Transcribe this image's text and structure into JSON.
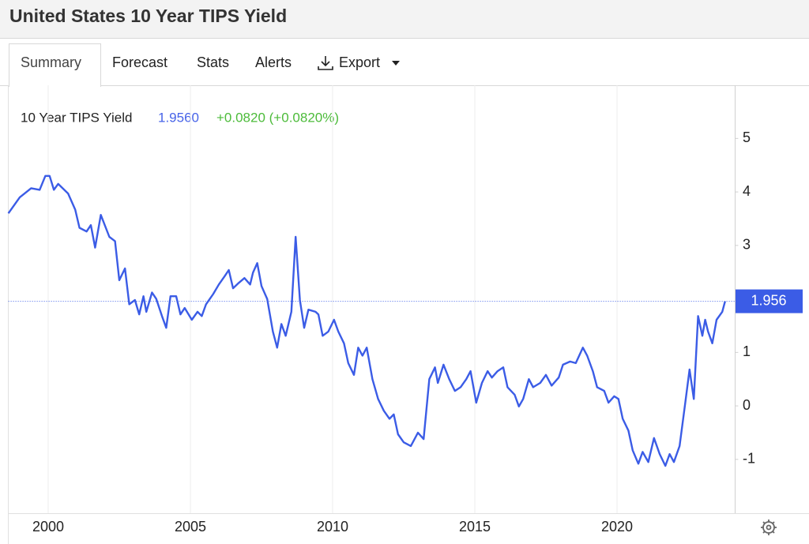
{
  "page": {
    "title": "United States 10 Year TIPS Yield",
    "tabs": [
      "Summary",
      "Forecast",
      "Stats",
      "Alerts",
      "Export"
    ],
    "active_tab": 0
  },
  "chart_data": {
    "type": "line",
    "current": "1.9560",
    "change": "+0.0820 (+0.0820%)",
    "x": [
      1998.6,
      1999.0,
      1999.4,
      1999.7,
      1999.9,
      2000.05,
      2000.2,
      2000.35,
      2000.7,
      2000.95,
      2001.1,
      2001.35,
      2001.5,
      2001.65,
      2001.85,
      2002.15,
      2002.35,
      2002.5,
      2002.7,
      2002.85,
      2003.05,
      2003.2,
      2003.35,
      2003.45,
      2003.65,
      2003.8,
      2004.0,
      2004.15,
      2004.3,
      2004.5,
      2004.65,
      2004.8,
      2005.05,
      2005.25,
      2005.4,
      2005.55,
      2005.8,
      2006.0,
      2006.2,
      2006.35,
      2006.5,
      2006.7,
      2006.9,
      2007.1,
      2007.2,
      2007.35,
      2007.5,
      2007.7,
      2007.9,
      2008.05,
      2008.2,
      2008.35,
      2008.55,
      2008.7,
      2008.85,
      2009.0,
      2009.15,
      2009.4,
      2009.5,
      2009.65,
      2009.85,
      2010.05,
      2010.2,
      2010.4,
      2010.55,
      2010.75,
      2010.9,
      2011.05,
      2011.2,
      2011.4,
      2011.6,
      2011.8,
      2012.0,
      2012.15,
      2012.3,
      2012.5,
      2012.75,
      2012.9,
      2013.0,
      2013.2,
      2013.4,
      2013.6,
      2013.7,
      2013.9,
      2014.1,
      2014.3,
      2014.5,
      2014.7,
      2014.85,
      2015.05,
      2015.25,
      2015.45,
      2015.6,
      2015.8,
      2016.0,
      2016.15,
      2016.4,
      2016.55,
      2016.7,
      2016.9,
      2017.05,
      2017.3,
      2017.5,
      2017.7,
      2017.95,
      2018.1,
      2018.35,
      2018.55,
      2018.8,
      2018.95,
      2019.15,
      2019.3,
      2019.55,
      2019.7,
      2019.9,
      2020.05,
      2020.2,
      2020.4,
      2020.55,
      2020.75,
      2020.9,
      2021.1,
      2021.3,
      2021.5,
      2021.7,
      2021.85,
      2022.0,
      2022.2,
      2022.4,
      2022.55,
      2022.7,
      2022.85,
      2023.0,
      2023.1,
      2023.2,
      2023.35,
      2023.5,
      2023.7,
      2023.8
    ],
    "series": [
      {
        "name": "10 Year TIPS Yield",
        "color": "#3b5ce6",
        "values": [
          3.6,
          3.9,
          4.07,
          4.04,
          4.3,
          4.3,
          4.04,
          4.15,
          3.97,
          3.67,
          3.33,
          3.26,
          3.38,
          2.96,
          3.57,
          3.16,
          3.08,
          2.35,
          2.57,
          1.9,
          1.98,
          1.71,
          2.05,
          1.76,
          2.12,
          2.0,
          1.68,
          1.46,
          2.05,
          2.05,
          1.71,
          1.83,
          1.61,
          1.76,
          1.68,
          1.9,
          2.09,
          2.27,
          2.42,
          2.54,
          2.2,
          2.3,
          2.39,
          2.27,
          2.49,
          2.67,
          2.24,
          2.0,
          1.39,
          1.09,
          1.53,
          1.31,
          1.76,
          3.16,
          1.98,
          1.46,
          1.8,
          1.76,
          1.71,
          1.31,
          1.39,
          1.61,
          1.39,
          1.17,
          0.8,
          0.58,
          1.09,
          0.94,
          1.09,
          0.5,
          0.13,
          -0.09,
          -0.24,
          -0.16,
          -0.53,
          -0.68,
          -0.75,
          -0.6,
          -0.5,
          -0.62,
          0.5,
          0.72,
          0.43,
          0.77,
          0.5,
          0.28,
          0.35,
          0.5,
          0.65,
          0.06,
          0.43,
          0.65,
          0.53,
          0.65,
          0.72,
          0.35,
          0.21,
          -0.01,
          0.13,
          0.5,
          0.35,
          0.43,
          0.58,
          0.38,
          0.53,
          0.77,
          0.83,
          0.8,
          1.09,
          0.94,
          0.65,
          0.35,
          0.28,
          0.06,
          0.18,
          0.13,
          -0.24,
          -0.46,
          -0.83,
          -1.08,
          -0.86,
          -1.05,
          -0.6,
          -0.9,
          -1.12,
          -0.9,
          -1.05,
          -0.75,
          0.06,
          0.68,
          0.13,
          1.68,
          1.31,
          1.61,
          1.39,
          1.17,
          1.61,
          1.76,
          1.956
        ]
      }
    ],
    "last_value": 1.956,
    "xlim": [
      1998.6,
      2024.15
    ],
    "xticks": [
      2000,
      2005,
      2010,
      2015,
      2020
    ],
    "ylim": [
      -2,
      6
    ],
    "yticks": [
      -1,
      0,
      1,
      3,
      4,
      5
    ],
    "grid": "x"
  }
}
